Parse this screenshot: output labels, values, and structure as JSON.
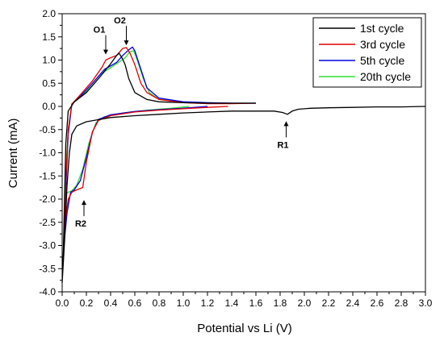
{
  "chart_data": {
    "type": "line",
    "title": "",
    "xlabel": "Potential vs Li (V)",
    "ylabel": "Current (mA)",
    "xlim": [
      0.0,
      3.0
    ],
    "ylim": [
      -4.0,
      2.0
    ],
    "xticks": [
      "0.0",
      "0.2",
      "0.4",
      "0.6",
      "0.8",
      "1.0",
      "1.2",
      "1.4",
      "1.6",
      "1.8",
      "2.0",
      "2.2",
      "2.4",
      "2.6",
      "2.8",
      "3.0"
    ],
    "yticks": [
      "-4.0",
      "-3.5",
      "-3.0",
      "-2.5",
      "-2.0",
      "-1.5",
      "-1.0",
      "-0.5",
      "0.0",
      "0.5",
      "1.0",
      "1.5",
      "2.0"
    ],
    "legend_position": "top-right",
    "annotations": [
      {
        "label": "O1",
        "x": 0.36,
        "y": 1.05,
        "arrow": "down"
      },
      {
        "label": "O2",
        "x": 0.53,
        "y": 1.25,
        "arrow": "down"
      },
      {
        "label": "R1",
        "x": 1.85,
        "y": -0.25,
        "arrow": "up"
      },
      {
        "label": "R2",
        "x": 0.18,
        "y": -1.95,
        "arrow": "up"
      }
    ],
    "series": [
      {
        "name": "1st cycle",
        "color": "#000000",
        "points": [
          [
            3.0,
            0.0
          ],
          [
            2.8,
            -0.01
          ],
          [
            2.6,
            -0.01
          ],
          [
            2.4,
            -0.02
          ],
          [
            2.2,
            -0.03
          ],
          [
            2.05,
            -0.04
          ],
          [
            1.95,
            -0.06
          ],
          [
            1.9,
            -0.1
          ],
          [
            1.86,
            -0.17
          ],
          [
            1.82,
            -0.13
          ],
          [
            1.75,
            -0.1
          ],
          [
            1.6,
            -0.1
          ],
          [
            1.4,
            -0.1
          ],
          [
            1.2,
            -0.12
          ],
          [
            1.0,
            -0.14
          ],
          [
            0.8,
            -0.17
          ],
          [
            0.6,
            -0.2
          ],
          [
            0.4,
            -0.24
          ],
          [
            0.2,
            -0.33
          ],
          [
            0.12,
            -0.42
          ],
          [
            0.08,
            -0.6
          ],
          [
            0.06,
            -1.0
          ],
          [
            0.04,
            -1.7
          ],
          [
            0.02,
            -2.9
          ],
          [
            0.0,
            -3.8
          ],
          [
            0.01,
            -3.1
          ],
          [
            0.03,
            -0.8
          ],
          [
            0.05,
            -0.1
          ],
          [
            0.1,
            0.1
          ],
          [
            0.2,
            0.3
          ],
          [
            0.3,
            0.6
          ],
          [
            0.4,
            0.92
          ],
          [
            0.45,
            1.1
          ],
          [
            0.47,
            1.15
          ],
          [
            0.5,
            1.02
          ],
          [
            0.52,
            0.9
          ],
          [
            0.55,
            0.6
          ],
          [
            0.6,
            0.3
          ],
          [
            0.7,
            0.15
          ],
          [
            0.8,
            0.1
          ],
          [
            1.0,
            0.08
          ],
          [
            1.2,
            0.07
          ],
          [
            1.4,
            0.07
          ],
          [
            1.6,
            0.07
          ]
        ]
      },
      {
        "name": "3rd cycle",
        "color": "#e00000",
        "points": [
          [
            1.37,
            0.0
          ],
          [
            1.2,
            -0.02
          ],
          [
            1.0,
            -0.05
          ],
          [
            0.8,
            -0.08
          ],
          [
            0.6,
            -0.12
          ],
          [
            0.4,
            -0.2
          ],
          [
            0.3,
            -0.3
          ],
          [
            0.25,
            -0.55
          ],
          [
            0.2,
            -1.2
          ],
          [
            0.17,
            -1.75
          ],
          [
            0.12,
            -1.8
          ],
          [
            0.08,
            -1.85
          ],
          [
            0.05,
            -2.0
          ],
          [
            0.03,
            -2.4
          ],
          [
            0.02,
            -2.6
          ],
          [
            0.03,
            -1.6
          ],
          [
            0.05,
            -0.5
          ],
          [
            0.08,
            0.05
          ],
          [
            0.15,
            0.25
          ],
          [
            0.25,
            0.55
          ],
          [
            0.33,
            0.85
          ],
          [
            0.36,
            1.0
          ],
          [
            0.4,
            1.05
          ],
          [
            0.45,
            1.1
          ],
          [
            0.5,
            1.25
          ],
          [
            0.53,
            1.27
          ],
          [
            0.56,
            1.15
          ],
          [
            0.6,
            0.9
          ],
          [
            0.65,
            0.5
          ],
          [
            0.7,
            0.3
          ],
          [
            0.8,
            0.15
          ],
          [
            1.0,
            0.08
          ],
          [
            1.2,
            0.06
          ],
          [
            1.4,
            0.06
          ],
          [
            1.6,
            0.07
          ]
        ]
      },
      {
        "name": "5th cycle",
        "color": "#0000e0",
        "points": [
          [
            1.2,
            0.0
          ],
          [
            1.0,
            -0.04
          ],
          [
            0.8,
            -0.07
          ],
          [
            0.6,
            -0.11
          ],
          [
            0.4,
            -0.18
          ],
          [
            0.3,
            -0.28
          ],
          [
            0.25,
            -0.55
          ],
          [
            0.2,
            -1.1
          ],
          [
            0.15,
            -1.6
          ],
          [
            0.1,
            -1.8
          ],
          [
            0.07,
            -1.85
          ],
          [
            0.04,
            -2.3
          ],
          [
            0.02,
            -2.85
          ],
          [
            0.03,
            -1.8
          ],
          [
            0.05,
            -0.6
          ],
          [
            0.08,
            0.05
          ],
          [
            0.15,
            0.22
          ],
          [
            0.25,
            0.5
          ],
          [
            0.35,
            0.8
          ],
          [
            0.45,
            0.95
          ],
          [
            0.5,
            1.1
          ],
          [
            0.55,
            1.22
          ],
          [
            0.58,
            1.28
          ],
          [
            0.6,
            1.2
          ],
          [
            0.65,
            0.8
          ],
          [
            0.7,
            0.4
          ],
          [
            0.8,
            0.18
          ],
          [
            1.0,
            0.1
          ],
          [
            1.2,
            0.08
          ],
          [
            1.4,
            0.07
          ],
          [
            1.6,
            0.07
          ]
        ]
      },
      {
        "name": "20th cycle",
        "color": "#33dd33",
        "points": [
          [
            1.05,
            0.0
          ],
          [
            0.9,
            -0.04
          ],
          [
            0.7,
            -0.08
          ],
          [
            0.5,
            -0.14
          ],
          [
            0.35,
            -0.22
          ],
          [
            0.28,
            -0.35
          ],
          [
            0.22,
            -0.8
          ],
          [
            0.17,
            -1.35
          ],
          [
            0.12,
            -1.7
          ],
          [
            0.08,
            -1.82
          ],
          [
            0.05,
            -1.85
          ],
          [
            0.02,
            -1.9
          ],
          [
            0.03,
            -1.4
          ],
          [
            0.05,
            -0.5
          ],
          [
            0.08,
            0.05
          ],
          [
            0.15,
            0.2
          ],
          [
            0.25,
            0.45
          ],
          [
            0.35,
            0.75
          ],
          [
            0.45,
            0.92
          ],
          [
            0.52,
            1.05
          ],
          [
            0.56,
            1.18
          ],
          [
            0.59,
            1.2
          ],
          [
            0.62,
            1.0
          ],
          [
            0.67,
            0.6
          ],
          [
            0.72,
            0.3
          ],
          [
            0.8,
            0.15
          ],
          [
            1.0,
            0.1
          ],
          [
            1.2,
            0.08
          ],
          [
            1.4,
            0.07
          ],
          [
            1.6,
            0.07
          ]
        ]
      }
    ]
  }
}
